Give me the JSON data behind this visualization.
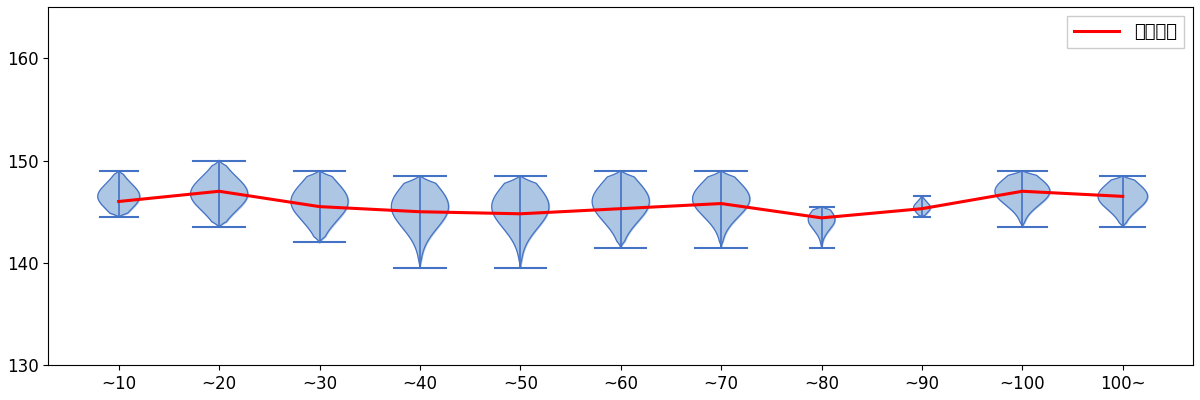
{
  "x_labels": [
    "~10",
    "~20",
    "~30",
    "~40",
    "~50",
    "~60",
    "~70",
    "~80",
    "~90",
    "~100",
    "100~"
  ],
  "means": [
    146.0,
    147.0,
    145.5,
    145.0,
    144.8,
    145.3,
    145.8,
    144.4,
    145.3,
    147.0,
    146.5
  ],
  "violins": [
    {
      "min": 144.5,
      "max": 149.0,
      "med": 146.0,
      "q1": 145.5,
      "q3": 147.5,
      "scale": 0.55
    },
    {
      "min": 143.5,
      "max": 150.0,
      "med": 147.0,
      "q1": 145.5,
      "q3": 148.0,
      "scale": 0.75
    },
    {
      "min": 142.0,
      "max": 149.0,
      "med": 145.5,
      "q1": 144.5,
      "q3": 147.5,
      "scale": 0.75
    },
    {
      "min": 139.5,
      "max": 148.5,
      "med": 145.0,
      "q1": 144.0,
      "q3": 147.0,
      "scale": 0.75
    },
    {
      "min": 139.5,
      "max": 148.5,
      "med": 144.8,
      "q1": 144.0,
      "q3": 147.0,
      "scale": 0.75
    },
    {
      "min": 141.5,
      "max": 149.0,
      "med": 145.5,
      "q1": 144.5,
      "q3": 147.5,
      "scale": 0.75
    },
    {
      "min": 141.5,
      "max": 149.0,
      "med": 146.0,
      "q1": 145.0,
      "q3": 147.5,
      "scale": 0.75
    },
    {
      "min": 141.5,
      "max": 145.5,
      "med": 144.3,
      "q1": 143.5,
      "q3": 145.0,
      "scale": 0.35
    },
    {
      "min": 144.5,
      "max": 146.5,
      "med": 145.3,
      "q1": 145.0,
      "q3": 145.8,
      "scale": 0.22
    },
    {
      "min": 143.5,
      "max": 149.0,
      "med": 147.0,
      "q1": 146.0,
      "q3": 148.0,
      "scale": 0.72
    },
    {
      "min": 143.5,
      "max": 148.5,
      "med": 146.5,
      "q1": 145.5,
      "q3": 147.5,
      "scale": 0.65
    }
  ],
  "ylim": [
    130,
    165
  ],
  "yticks": [
    130,
    140,
    150,
    160
  ],
  "violin_fill_color": "#adc6e3",
  "violin_edge_color": "#4472c4",
  "line_color": "red",
  "line_label": "球速平均",
  "figsize": [
    12,
    4
  ],
  "dpi": 100
}
